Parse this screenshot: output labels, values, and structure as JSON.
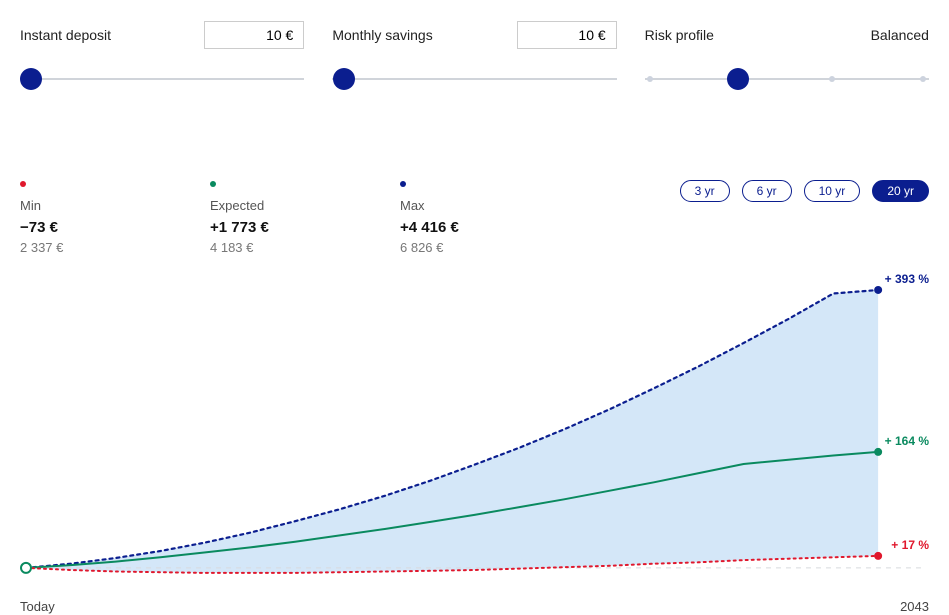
{
  "controls": {
    "deposit": {
      "label": "Instant deposit",
      "value": "10 €",
      "slider_pos_pct": 4
    },
    "monthly": {
      "label": "Monthly savings",
      "value": "10 €",
      "slider_pos_pct": 4
    },
    "risk": {
      "label": "Risk profile",
      "value": "Balanced",
      "slider_pos_pct": 33,
      "ticks_pct": [
        2,
        33,
        66,
        98
      ]
    }
  },
  "stats": {
    "min": {
      "label": "Min",
      "delta": "−73 €",
      "total": "2 337 €",
      "color": "#e0182d"
    },
    "expected": {
      "label": "Expected",
      "delta": "+1 773 €",
      "total": "4 183 €",
      "color": "#0a8a5f"
    },
    "max": {
      "label": "Max",
      "delta": "+4 416 €",
      "total": "6 826 €",
      "color": "#0b1e8f"
    }
  },
  "year_pills": [
    {
      "label": "3 yr",
      "active": false
    },
    {
      "label": "6 yr",
      "active": false
    },
    {
      "label": "10 yr",
      "active": false
    },
    {
      "label": "20 yr",
      "active": true
    }
  ],
  "chart": {
    "type": "area_band_with_lines",
    "colors": {
      "band_fill": "#c5dff5",
      "band_fill_opacity": 0.75,
      "max_line": "#0b1e8f",
      "expected_line": "#0a8a5f",
      "min_line": "#e0182d",
      "zero_line": "#d7dade",
      "start_marker_stroke": "#0a8a5f",
      "start_marker_fill": "#ffffff"
    },
    "line_style": {
      "max": {
        "dash": "3,4",
        "width": 2.2
      },
      "expected": {
        "dash": "none",
        "width": 2
      },
      "min": {
        "dash": "2,4",
        "width": 2
      },
      "zero": {
        "dash": "5,5",
        "width": 1
      }
    },
    "x_range": [
      0,
      20
    ],
    "y_range_pct": [
      -10,
      400
    ],
    "end_labels": {
      "max": "+ 393 %",
      "expected": "+ 164 %",
      "min": "+ 17 %"
    },
    "series": {
      "max": [
        0,
        6,
        14,
        24,
        36,
        50,
        66,
        83,
        102,
        123,
        146,
        170,
        196,
        224,
        254,
        285,
        318,
        352,
        388,
        393
      ],
      "expected": [
        0,
        4,
        9,
        15,
        22,
        29,
        37,
        46,
        55,
        65,
        75,
        86,
        97,
        109,
        121,
        134,
        147,
        153,
        159,
        164
      ],
      "min": [
        0,
        -3,
        -5,
        -6,
        -7,
        -7,
        -7,
        -6,
        -5,
        -4,
        -3,
        -1,
        1,
        3,
        6,
        8,
        11,
        13,
        15,
        17
      ]
    },
    "x_labels": {
      "start": "Today",
      "end": "2043"
    }
  }
}
